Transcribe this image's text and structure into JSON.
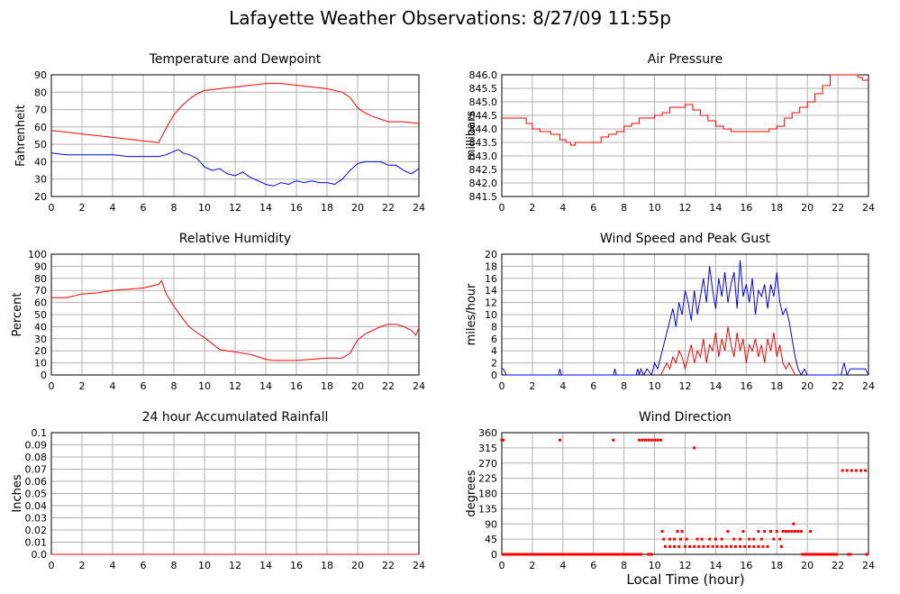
{
  "page": {
    "title": "Lafayette Weather Observations: 8/27/09 11:55p",
    "x_caption": "Local Time (hour)"
  },
  "chart_data": [
    {
      "id": "temperature",
      "type": "line",
      "title": "Temperature and Dewpoint",
      "ylabel": "Fahrenheit",
      "xlim": [
        0,
        24
      ],
      "ylim": [
        20,
        90
      ],
      "xticks": [
        0,
        2,
        4,
        6,
        8,
        10,
        12,
        14,
        16,
        18,
        20,
        22,
        24
      ],
      "yticks": [
        20,
        30,
        40,
        50,
        60,
        70,
        80,
        90
      ],
      "ytick_labels": [
        "20",
        "30",
        "40",
        "50",
        "60",
        "70",
        "80",
        "90"
      ],
      "grid": true,
      "series": [
        {
          "color": "#ff0000",
          "style": "line",
          "x": [
            0,
            1,
            2,
            3,
            4,
            5,
            6,
            7,
            7.3,
            7.6,
            8,
            8.5,
            9,
            9.5,
            10,
            11,
            12,
            13,
            14,
            15,
            16,
            17,
            18,
            19,
            19.5,
            20,
            20.5,
            21,
            22,
            23,
            24
          ],
          "y": [
            58,
            57,
            56,
            55,
            54,
            53,
            52,
            51,
            56,
            61,
            67,
            72,
            76,
            79,
            81,
            82,
            83,
            84,
            85,
            85,
            84,
            83,
            82,
            80,
            77,
            71,
            68,
            66,
            63,
            63,
            62
          ]
        },
        {
          "color": "#0000ff",
          "style": "line",
          "x": [
            0,
            1,
            2,
            3,
            4,
            5,
            6,
            7,
            7.5,
            8,
            8.3,
            8.6,
            9,
            9.5,
            10,
            10.5,
            11,
            11.5,
            12,
            12.5,
            13,
            13.5,
            14,
            14.5,
            15,
            15.5,
            16,
            16.5,
            17,
            17.5,
            18,
            18.5,
            19,
            19.5,
            20,
            20.5,
            21,
            21.5,
            22,
            22.5,
            23,
            23.5,
            24
          ],
          "y": [
            45,
            44,
            44,
            44,
            44,
            43,
            43,
            43,
            44,
            46,
            47,
            45,
            44,
            42,
            37,
            35,
            36,
            33,
            32,
            34,
            31,
            29,
            27,
            26,
            28,
            27,
            29,
            28,
            29,
            28,
            28,
            27,
            30,
            35,
            39,
            40,
            40,
            40,
            38,
            38,
            35,
            33,
            36
          ]
        }
      ]
    },
    {
      "id": "pressure",
      "type": "line",
      "title": "Air Pressure",
      "ylabel": "millibars",
      "xlim": [
        0,
        24
      ],
      "ylim": [
        841.5,
        846.0
      ],
      "xticks": [
        0,
        2,
        4,
        6,
        8,
        10,
        12,
        14,
        16,
        18,
        20,
        22,
        24
      ],
      "yticks": [
        841.5,
        842.0,
        842.5,
        843.0,
        843.5,
        844.0,
        844.5,
        845.0,
        845.5,
        846.0
      ],
      "ytick_labels": [
        "841.5",
        "842.0",
        "842.5",
        "843.0",
        "843.5",
        "844.0",
        "844.5",
        "845.0",
        "845.5",
        "846.0"
      ],
      "grid": true,
      "series": [
        {
          "color": "#ff0000",
          "style": "step",
          "x": [
            0,
            1.6,
            2.0,
            2.5,
            3.2,
            3.8,
            4.2,
            4.5,
            4.8,
            6.0,
            6.5,
            7.0,
            7.5,
            8.0,
            8.5,
            9.0,
            10.0,
            10.5,
            11.0,
            12.0,
            12.5,
            13.0,
            13.5,
            14.0,
            14.5,
            15.0,
            16.0,
            17.0,
            17.5,
            18.0,
            18.5,
            19.0,
            19.5,
            20.0,
            20.5,
            21.0,
            21.5,
            23.3,
            23.6,
            24
          ],
          "y": [
            844.4,
            844.2,
            844.0,
            843.9,
            843.8,
            843.6,
            843.5,
            843.4,
            843.5,
            843.5,
            843.7,
            843.8,
            843.9,
            844.1,
            844.2,
            844.4,
            844.5,
            844.6,
            844.8,
            844.9,
            844.7,
            844.5,
            844.3,
            844.1,
            844.0,
            843.9,
            843.9,
            843.9,
            844.0,
            844.1,
            844.4,
            844.6,
            844.8,
            845.0,
            845.3,
            845.6,
            846.0,
            845.9,
            845.8,
            845.8
          ]
        }
      ]
    },
    {
      "id": "humidity",
      "type": "line",
      "title": "Relative Humidity",
      "ylabel": "Percent",
      "xlim": [
        0,
        24
      ],
      "ylim": [
        0,
        100
      ],
      "xticks": [
        0,
        2,
        4,
        6,
        8,
        10,
        12,
        14,
        16,
        18,
        20,
        22,
        24
      ],
      "yticks": [
        0,
        10,
        20,
        30,
        40,
        50,
        60,
        70,
        80,
        90,
        100
      ],
      "ytick_labels": [
        "0",
        "10",
        "20",
        "30",
        "40",
        "50",
        "60",
        "70",
        "80",
        "90",
        "100"
      ],
      "grid": true,
      "series": [
        {
          "color": "#ff0000",
          "style": "line",
          "x": [
            0,
            1,
            2,
            3,
            4,
            5,
            6,
            7,
            7.2,
            7.5,
            8,
            8.5,
            9,
            9.5,
            10,
            10.5,
            11,
            11.5,
            12,
            12.5,
            13,
            13.5,
            14,
            14.5,
            15,
            16,
            17,
            18,
            18.5,
            19,
            19.5,
            20,
            20.5,
            21,
            21.5,
            22,
            22.5,
            23,
            23.5,
            23.8,
            24
          ],
          "y": [
            64,
            64,
            67,
            68,
            70,
            71,
            72,
            75,
            78,
            67,
            57,
            48,
            40,
            35,
            31,
            26,
            21,
            20,
            19,
            18,
            17,
            15,
            13,
            12,
            12,
            12,
            13,
            14,
            14,
            14,
            18,
            29,
            34,
            37,
            40,
            42,
            42,
            40,
            37,
            33,
            39
          ]
        }
      ]
    },
    {
      "id": "wind_speed",
      "type": "line",
      "title": "Wind Speed and Peak Gust",
      "ylabel": "miles/hour",
      "xlim": [
        0,
        24
      ],
      "ylim": [
        0,
        20
      ],
      "xticks": [
        0,
        2,
        4,
        6,
        8,
        10,
        12,
        14,
        16,
        18,
        20,
        22,
        24
      ],
      "yticks": [
        0,
        2,
        4,
        6,
        8,
        10,
        12,
        14,
        16,
        18,
        20
      ],
      "ytick_labels": [
        "0",
        "2",
        "4",
        "6",
        "8",
        "10",
        "12",
        "14",
        "16",
        "18",
        "20"
      ],
      "grid": true,
      "series": [
        {
          "color": "#0000ff",
          "style": "line",
          "x": [
            0,
            0.1,
            0.3,
            3.7,
            3.8,
            3.9,
            7.3,
            7.4,
            7.5,
            8.8,
            8.9,
            9.0,
            9.1,
            9.3,
            9.5,
            9.8,
            10.0,
            10.2,
            10.4,
            10.6,
            10.8,
            11.0,
            11.2,
            11.4,
            11.6,
            11.8,
            12.0,
            12.2,
            12.4,
            12.6,
            12.8,
            13.0,
            13.2,
            13.4,
            13.6,
            13.8,
            14.0,
            14.2,
            14.4,
            14.6,
            14.8,
            15.0,
            15.2,
            15.4,
            15.6,
            15.8,
            16.0,
            16.2,
            16.4,
            16.6,
            16.8,
            17.0,
            17.2,
            17.4,
            17.6,
            17.8,
            18.0,
            18.2,
            18.4,
            18.6,
            18.8,
            19.0,
            19.2,
            19.4,
            19.6,
            19.8,
            20.0,
            20.2,
            22.2,
            22.4,
            22.6,
            22.8,
            23.0,
            23.8,
            24
          ],
          "y": [
            1,
            1,
            0,
            0,
            1,
            0,
            0,
            1,
            0,
            0,
            1,
            0,
            1,
            0,
            1,
            0,
            2,
            1,
            3,
            5,
            7,
            9,
            11,
            8,
            12,
            10,
            14,
            12,
            9,
            14,
            10,
            13,
            16,
            12,
            18,
            14,
            11,
            16,
            13,
            17,
            12,
            15,
            17,
            11,
            19,
            13,
            15,
            12,
            16,
            10,
            14,
            13,
            15,
            11,
            15,
            13,
            17,
            12,
            10,
            11,
            9,
            6,
            3,
            1,
            0,
            1,
            0,
            0,
            0,
            2,
            0,
            1,
            1,
            1,
            0
          ]
        },
        {
          "color": "#ff0000",
          "style": "line",
          "x": [
            10.4,
            10.6,
            10.8,
            11.0,
            11.2,
            11.4,
            11.6,
            11.8,
            12.0,
            12.2,
            12.4,
            12.6,
            12.8,
            13.0,
            13.2,
            13.4,
            13.6,
            13.8,
            14.0,
            14.2,
            14.4,
            14.6,
            14.8,
            15.0,
            15.2,
            15.4,
            15.6,
            15.8,
            16.0,
            16.2,
            16.4,
            16.6,
            16.8,
            17.0,
            17.2,
            17.4,
            17.6,
            17.8,
            18.0,
            18.2,
            18.4,
            18.6,
            18.8,
            19.0,
            19.2
          ],
          "y": [
            0,
            1,
            2,
            1,
            3,
            2,
            4,
            3,
            1,
            3,
            5,
            2,
            4,
            3,
            6,
            2,
            5,
            4,
            7,
            3,
            6,
            4,
            8,
            5,
            3,
            7,
            4,
            6,
            2,
            5,
            4,
            6,
            3,
            5,
            2,
            6,
            4,
            7,
            3,
            5,
            2,
            1,
            2,
            1,
            0
          ]
        }
      ]
    },
    {
      "id": "rainfall",
      "type": "line",
      "title": "24 hour Accumulated Rainfall",
      "ylabel": "Inches",
      "xlim": [
        0,
        24
      ],
      "ylim": [
        0.0,
        0.1
      ],
      "xticks": [
        0,
        2,
        4,
        6,
        8,
        10,
        12,
        14,
        16,
        18,
        20,
        22,
        24
      ],
      "yticks": [
        0.0,
        0.01,
        0.02,
        0.03,
        0.04,
        0.05,
        0.06,
        0.07,
        0.08,
        0.09,
        0.1
      ],
      "ytick_labels": [
        "0.0",
        "0.01",
        "0.02",
        "0.03",
        "0.04",
        "0.05",
        "0.06",
        "0.07",
        "0.08",
        "0.09",
        "0.1"
      ],
      "grid": true,
      "series": [
        {
          "color": "#ff0000",
          "style": "line",
          "x": [
            0,
            24
          ],
          "y": [
            0.0,
            0.0
          ]
        }
      ]
    },
    {
      "id": "wind_direction",
      "type": "scatter",
      "title": "Wind Direction",
      "ylabel": "degrees",
      "xlim": [
        0,
        24
      ],
      "ylim": [
        0,
        360
      ],
      "xticks": [
        0,
        2,
        4,
        6,
        8,
        10,
        12,
        14,
        16,
        18,
        20,
        22,
        24
      ],
      "yticks": [
        0,
        45,
        90,
        135,
        180,
        225,
        270,
        315,
        360
      ],
      "ytick_labels": [
        "0",
        "45",
        "90",
        "135",
        "180",
        "225",
        "270",
        "315",
        "360"
      ],
      "grid": true,
      "series": [
        {
          "color": "#ff0000",
          "style": "scatter",
          "x": [
            0.0,
            0.1,
            3.8,
            7.3,
            9.0,
            9.2,
            9.4,
            9.6,
            9.8,
            10.0,
            10.2,
            10.4,
            12.6,
            22.3,
            22.6,
            22.9,
            23.2,
            23.5,
            23.8,
            10.5,
            11.5,
            11.8,
            14.8,
            15.8,
            16.8,
            17.2,
            17.6,
            18.0,
            18.4,
            18.8,
            19.0,
            19.2,
            19.4,
            19.6,
            20.2,
            18.6,
            19.1,
            10.6,
            11.0,
            11.3,
            11.7,
            12.1,
            12.8,
            13.1,
            13.6,
            14.0,
            14.4,
            15.2,
            15.6,
            16.2,
            16.5,
            17.0,
            17.8,
            18.2,
            10.7,
            11.0,
            11.3,
            11.6,
            12.0,
            12.3,
            12.6,
            12.9,
            13.2,
            13.5,
            13.8,
            14.1,
            14.4,
            14.7,
            15.0,
            15.3,
            15.6,
            15.9,
            16.2,
            16.5,
            16.8,
            17.1,
            17.4,
            18.3
          ],
          "y": [
            338,
            338,
            338,
            338,
            338,
            338,
            338,
            338,
            338,
            338,
            338,
            338,
            315,
            248,
            248,
            248,
            248,
            248,
            248,
            68,
            68,
            68,
            68,
            68,
            68,
            68,
            68,
            68,
            68,
            68,
            68,
            68,
            68,
            68,
            68,
            68,
            90,
            45,
            45,
            45,
            45,
            45,
            45,
            45,
            45,
            45,
            45,
            45,
            45,
            45,
            45,
            45,
            45,
            45,
            23,
            23,
            23,
            23,
            23,
            23,
            23,
            23,
            23,
            23,
            23,
            23,
            23,
            23,
            23,
            23,
            23,
            23,
            23,
            23,
            23,
            23,
            23,
            23
          ]
        },
        {
          "color": "#ff0000",
          "style": "scatter-band",
          "ranges": [
            [
              0,
              9.2
            ],
            [
              9.5,
              9.9
            ],
            [
              19.6,
              22.0
            ],
            [
              22.6,
              22.9
            ],
            [
              23.8,
              24
            ]
          ],
          "y": 0
        }
      ]
    }
  ]
}
